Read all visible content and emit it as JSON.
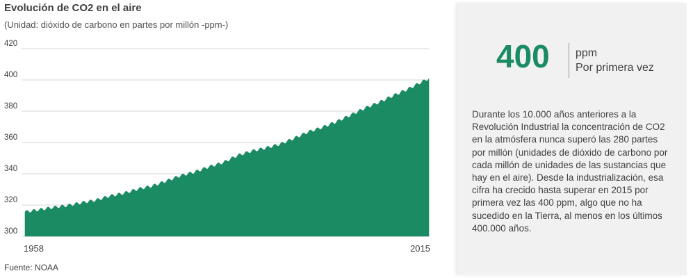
{
  "header": {
    "title": "Evolución de CO2 en el aire",
    "subtitle": "(Unidad: dióxido de carbono en partes por millón -ppm-)"
  },
  "source": "Fuente: NOAA",
  "panel": {
    "value": "400",
    "unit": "ppm",
    "caption": "Por primera vez",
    "description": "Durante los 10.000 años anteriores a la Revolución Industrial la concentración de CO2 en la atmósfera nunca superó las 280 partes por millón (unidades de dióxido de carbono por cada millón de unidades de las sustancias que hay en el aire). Desde la industrialización, esa cifra ha crecido hasta superar en 2015 por primera vez las 400 ppm, algo que no ha sucedido en la Tierra, al menos en los últimos 400.000 años."
  },
  "colors": {
    "area": "#1b8b63",
    "accent": "#1b8b63",
    "grid": "#d4d4d4",
    "panel_bg": "#f1f1f1"
  },
  "chart_data": {
    "type": "area",
    "title": "Evolución de CO2 en el aire",
    "subtitle": "(Unidad: dióxido de carbono en partes por millón -ppm-)",
    "xlabel": "",
    "ylabel": "",
    "xlim": [
      1958,
      2015
    ],
    "ylim": [
      300,
      420
    ],
    "yticks": [
      300,
      320,
      340,
      360,
      380,
      400,
      420
    ],
    "xtick_labels": [
      "1958",
      "2015"
    ],
    "grid": true,
    "seasonal_amplitude_ppm": 3,
    "series": [
      {
        "x": [
          1958,
          1960,
          1962,
          1964,
          1966,
          1968,
          1970,
          1972,
          1974,
          1976,
          1978,
          1980,
          1982,
          1984,
          1986,
          1988,
          1990,
          1992,
          1994,
          1996,
          1998,
          2000,
          2002,
          2004,
          2006,
          2008,
          2010,
          2012,
          2014,
          2015
        ],
        "values": [
          315.5,
          316.9,
          318.4,
          319.6,
          321.4,
          323.0,
          325.7,
          327.5,
          330.2,
          332.1,
          335.4,
          338.7,
          341.1,
          344.4,
          347.1,
          351.6,
          354.4,
          356.4,
          358.8,
          362.6,
          366.7,
          369.6,
          373.3,
          377.5,
          381.9,
          385.6,
          389.9,
          393.9,
          398.6,
          400.8
        ]
      }
    ]
  }
}
